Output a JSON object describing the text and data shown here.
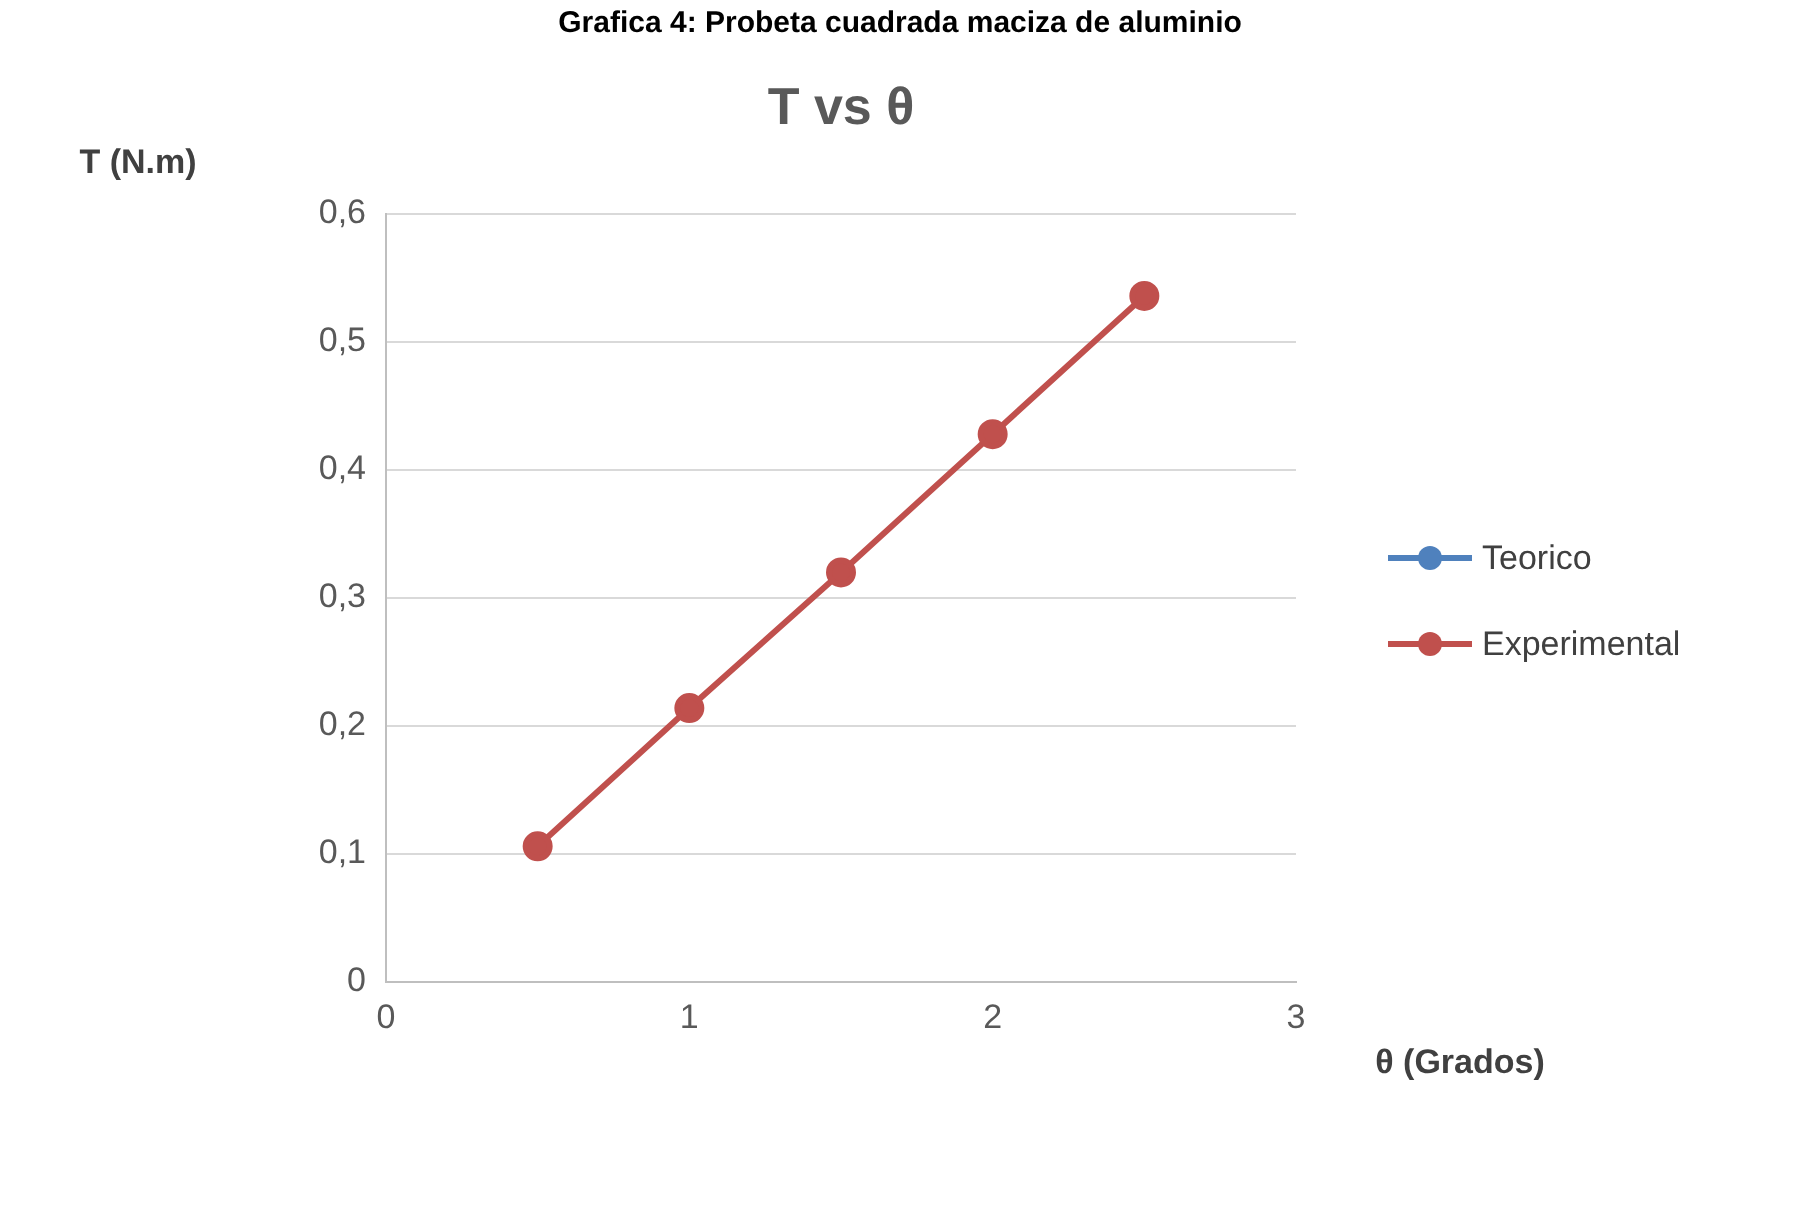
{
  "chart_data": {
    "type": "line",
    "title": "T vs θ",
    "subtitle": "Grafica 4: Probeta cuadrada maciza de aluminio",
    "xlabel": "θ (Grados)",
    "ylabel": "T (N.m)",
    "x": [
      0.5,
      1,
      1.5,
      2,
      2.5
    ],
    "series": [
      {
        "name": "Teorico",
        "color": "#4f81bd",
        "values": [
          null,
          null,
          null,
          null,
          null
        ]
      },
      {
        "name": "Experimental",
        "color": "#c0504d",
        "values": [
          0.106,
          0.214,
          0.32,
          0.428,
          0.536
        ]
      }
    ],
    "xlim": [
      0,
      3
    ],
    "xticks": [
      {
        "value": 0,
        "label": "0"
      },
      {
        "value": 1,
        "label": "1"
      },
      {
        "value": 2,
        "label": "2"
      },
      {
        "value": 3,
        "label": "3"
      }
    ],
    "ylim": [
      0,
      0.6
    ],
    "yticks": [
      {
        "value": 0,
        "label": "0"
      },
      {
        "value": 0.1,
        "label": "0,1"
      },
      {
        "value": 0.2,
        "label": "0,2"
      },
      {
        "value": 0.3,
        "label": "0,3"
      },
      {
        "value": 0.4,
        "label": "0,4"
      },
      {
        "value": 0.5,
        "label": "0,5"
      },
      {
        "value": 0.6,
        "label": "0,6"
      }
    ],
    "grid": "y",
    "legend": "right",
    "marker": "circle",
    "line_style": "solid"
  }
}
